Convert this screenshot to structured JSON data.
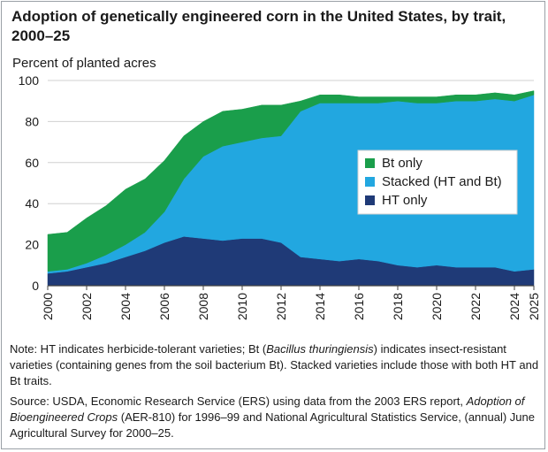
{
  "chart_data": {
    "type": "area",
    "stacked": true,
    "title": "Adoption of genetically engineered corn in the United States, by trait, 2000–25",
    "ylabel": "Percent of planted acres",
    "xlabel": "",
    "ylim": [
      0,
      100
    ],
    "yticks": [
      0,
      20,
      40,
      60,
      80,
      100
    ],
    "xlim": [
      2000,
      2025
    ],
    "xticks": [
      2000,
      2002,
      2004,
      2006,
      2008,
      2010,
      2012,
      2014,
      2016,
      2018,
      2020,
      2022,
      2024,
      2025
    ],
    "x": [
      2000,
      2001,
      2002,
      2003,
      2004,
      2005,
      2006,
      2007,
      2008,
      2009,
      2010,
      2011,
      2012,
      2013,
      2014,
      2015,
      2016,
      2017,
      2018,
      2019,
      2020,
      2021,
      2022,
      2023,
      2024,
      2025
    ],
    "series": [
      {
        "name": "HT only",
        "color": "#1f3a77",
        "values": [
          6,
          7,
          9,
          11,
          14,
          17,
          21,
          24,
          23,
          22,
          23,
          23,
          21,
          14,
          13,
          12,
          13,
          12,
          10,
          9,
          10,
          9,
          9,
          9,
          7,
          8
        ]
      },
      {
        "name": "Stacked (HT and Bt)",
        "color": "#22a7e0",
        "values": [
          1,
          1,
          2,
          4,
          6,
          9,
          15,
          28,
          40,
          46,
          47,
          49,
          52,
          71,
          76,
          77,
          76,
          77,
          80,
          80,
          79,
          81,
          81,
          82,
          83,
          85
        ]
      },
      {
        "name": "Bt only",
        "color": "#1a9e4b",
        "values": [
          18,
          18,
          22,
          24,
          27,
          26,
          25,
          21,
          17,
          17,
          16,
          16,
          15,
          5,
          4,
          4,
          3,
          3,
          2,
          3,
          3,
          3,
          3,
          3,
          3,
          2
        ]
      }
    ],
    "legend": {
      "placement": "right",
      "order": [
        "Bt only",
        "Stacked (HT and Bt)",
        "HT only"
      ]
    },
    "grid": true
  },
  "note": {
    "p1": "Note: HT indicates herbicide-tolerant varieties; Bt (",
    "p1_italic": "Bacillus thuringiensis",
    "p2": ") indicates insect-resistant varieties (containing genes from the soil bacterium Bt). Stacked varieties include those with both HT and Bt traits."
  },
  "source": {
    "p1": "Source: USDA, Economic Research Service (ERS) using data from the 2003 ERS report, ",
    "p1_italic": "Adoption of Bioengineered Crops",
    "p2": " (AER-810) for 1996–99 and National Agricultural Statistics Service, (annual) June Agricultural Survey for 2000–25."
  },
  "colors": {
    "grid": "#d0d0d0",
    "axis": "#444444"
  }
}
